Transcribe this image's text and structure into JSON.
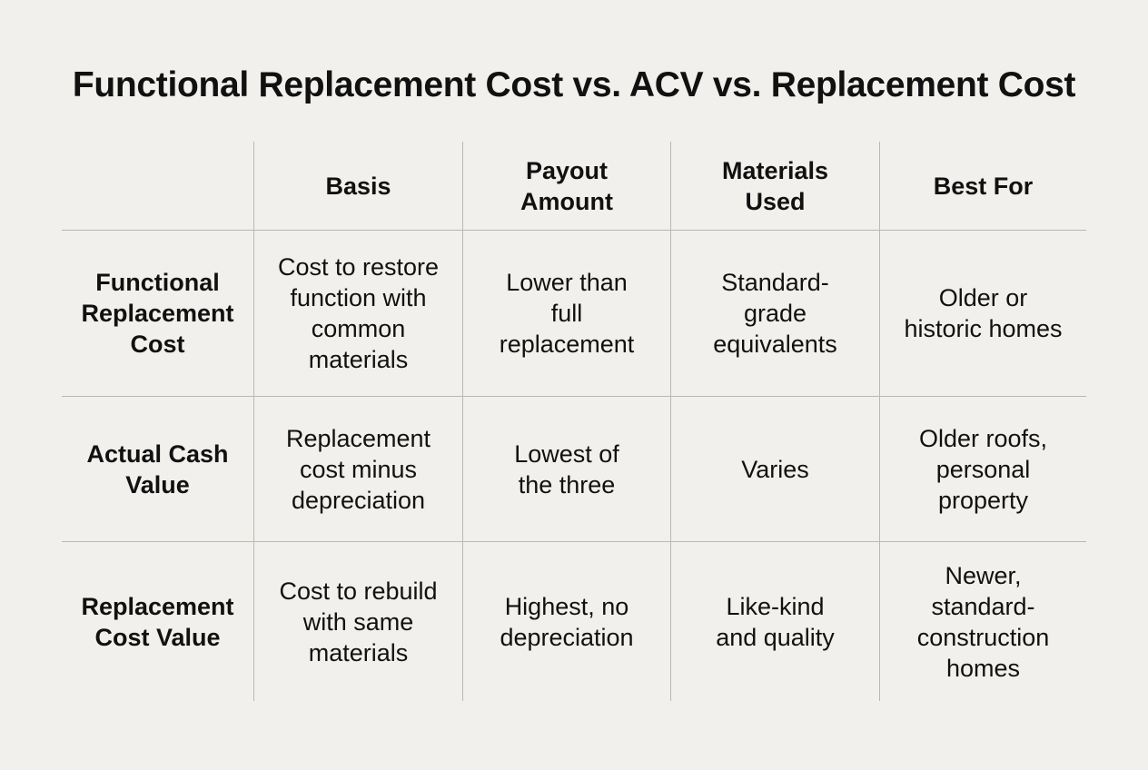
{
  "title": "Functional Replacement Cost vs. ACV vs. Replacement Cost",
  "table": {
    "corner": "",
    "columns": [
      "Basis",
      "Payout\nAmount",
      "Materials\nUsed",
      "Best For"
    ],
    "rows": [
      {
        "label": "Functional\nReplacement\nCost",
        "cells": [
          "Cost to restore\nfunction with\ncommon\nmaterials",
          "Lower than\nfull\nreplacement",
          "Standard-\ngrade\nequivalents",
          "Older or\nhistoric homes"
        ]
      },
      {
        "label": "Actual Cash\nValue",
        "cells": [
          "Replacement\ncost minus\ndepreciation",
          "Lowest of\nthe three",
          "Varies",
          "Older roofs,\npersonal\nproperty"
        ]
      },
      {
        "label": "Replacement\nCost Value",
        "cells": [
          "Cost to rebuild\nwith same\nmaterials",
          "Highest, no\ndepreciation",
          "Like-kind\nand quality",
          "Newer,\nstandard-\nconstruction\nhomes"
        ]
      }
    ]
  }
}
